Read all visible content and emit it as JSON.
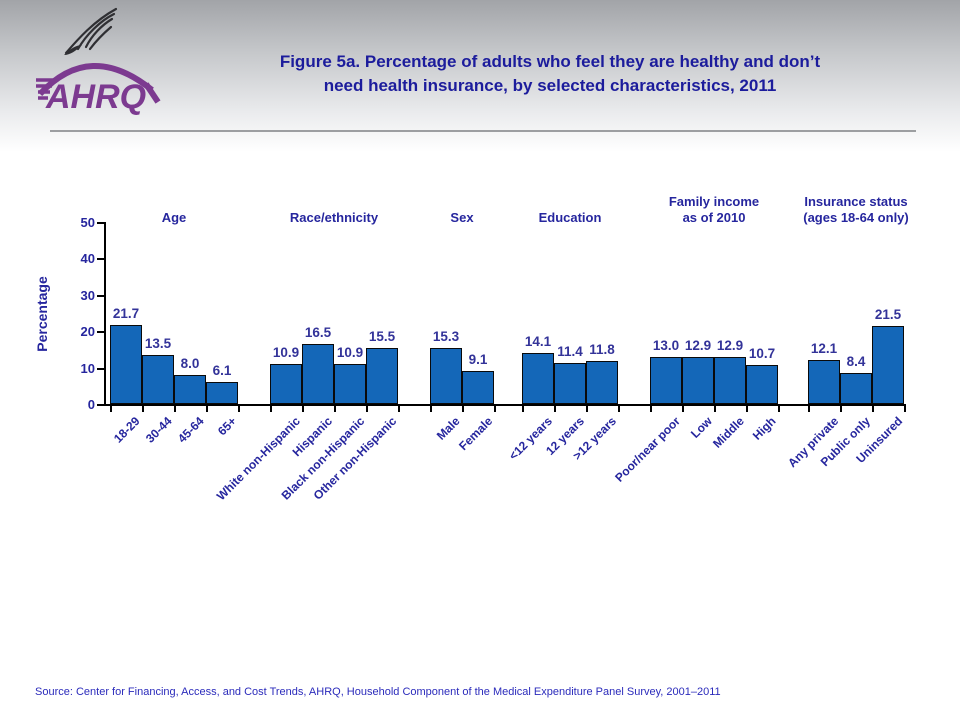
{
  "header": {
    "title_line1": "Figure 5a. Percentage of adults who feel they are healthy and don’t",
    "title_line2": "need health insurance, by selected characteristics, 2011",
    "logo_text": "AHRQ"
  },
  "footer": {
    "source": "Source: Center for Financing, Access, and Cost Trends, AHRQ, Household Component of the Medical Expenditure Panel Survey,  2001–2011"
  },
  "chart_data": {
    "type": "bar",
    "title": "Percentage of adults who feel they are healthy and don’t need health insurance, by selected characteristics, 2011",
    "ylabel": "Percentage",
    "xlabel": "",
    "ylim": [
      0,
      50
    ],
    "yticks": [
      0,
      10,
      20,
      30,
      40,
      50
    ],
    "grid": false,
    "legend": "none",
    "bar_color": "#1467b8",
    "label_color": "#333399",
    "groups": [
      {
        "label": "Age",
        "categories": [
          "18-29",
          "30-44",
          "45-64",
          "65+"
        ],
        "values": [
          21.7,
          13.5,
          8.0,
          6.1
        ]
      },
      {
        "label": "Race/ethnicity",
        "categories": [
          "White non-Hispanic",
          "Hispanic",
          "Black non-Hispanic",
          "Other non-Hispanic"
        ],
        "values": [
          10.9,
          16.5,
          10.9,
          15.5
        ]
      },
      {
        "label": "Sex",
        "categories": [
          "Male",
          "Female"
        ],
        "values": [
          15.3,
          9.1
        ]
      },
      {
        "label": "Education",
        "categories": [
          "<12 years",
          "12 years",
          ">12 years"
        ],
        "values": [
          14.1,
          11.4,
          11.8
        ]
      },
      {
        "label": "Family income\nas of 2010",
        "categories": [
          "Poor/near poor",
          "Low",
          "Middle",
          "High"
        ],
        "values": [
          13.0,
          12.9,
          12.9,
          10.7
        ]
      },
      {
        "label": "Insurance status\n(ages 18-64  only)",
        "categories": [
          "Any private",
          "Public only",
          "Uninsured"
        ],
        "values": [
          12.1,
          8.4,
          21.5
        ]
      }
    ]
  }
}
